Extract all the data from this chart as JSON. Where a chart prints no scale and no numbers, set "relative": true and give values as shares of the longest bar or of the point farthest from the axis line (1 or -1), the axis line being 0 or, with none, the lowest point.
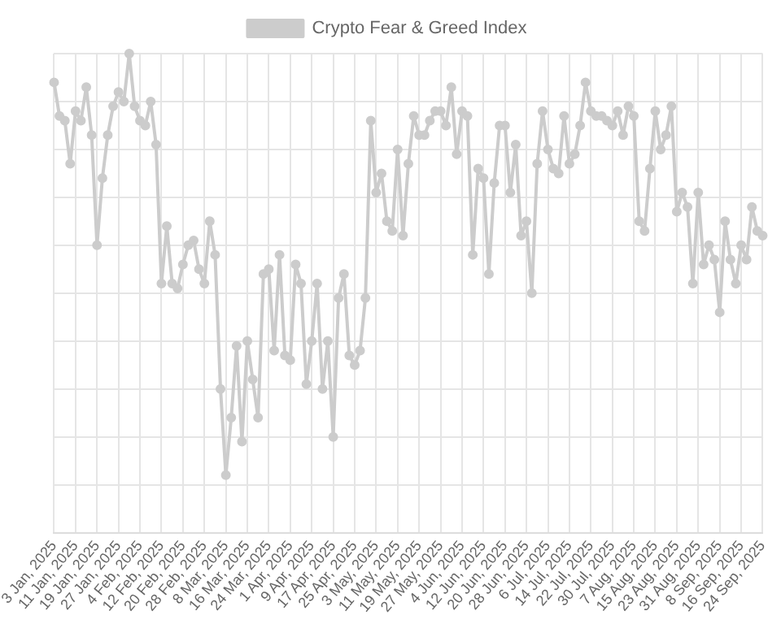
{
  "chart_data": {
    "type": "line",
    "relative": true,
    "legend": "top",
    "grid": true,
    "marker": "circle",
    "line_style": "solid",
    "categories": [
      "3 Jan, 2025",
      null,
      null,
      null,
      "11 Jan, 2025",
      null,
      null,
      null,
      "19 Jan, 2025",
      null,
      null,
      null,
      "27 Jan, 2025",
      null,
      null,
      null,
      "4 Feb, 2025",
      null,
      null,
      null,
      "12 Feb, 2025",
      null,
      null,
      null,
      "20 Feb, 2025",
      null,
      null,
      null,
      "28 Feb, 2025",
      null,
      null,
      null,
      "8 Mar, 2025",
      null,
      null,
      null,
      "16 Mar, 2025",
      null,
      null,
      null,
      "24 Mar, 2025",
      null,
      null,
      null,
      "1 Apr, 2025",
      null,
      null,
      null,
      "9 Apr, 2025",
      null,
      null,
      null,
      "17 Apr, 2025",
      null,
      null,
      null,
      "25 Apr, 2025",
      null,
      null,
      null,
      "3 May, 2025",
      null,
      null,
      null,
      "11 May, 2025",
      null,
      null,
      null,
      "19 May, 2025",
      null,
      null,
      null,
      "27 May, 2025",
      null,
      null,
      null,
      "4 Jun, 2025",
      null,
      null,
      null,
      "12 Jun, 2025",
      null,
      null,
      null,
      "20 Jun, 2025",
      null,
      null,
      null,
      "28 Jun, 2025",
      null,
      null,
      null,
      "6 Jul, 2025",
      null,
      null,
      null,
      "14 Jul, 2025",
      null,
      null,
      null,
      "22 Jul, 2025",
      null,
      null,
      null,
      "30 Jul, 2025",
      null,
      null,
      null,
      "7 Aug, 2025",
      null,
      null,
      null,
      "15 Aug, 2025",
      null,
      null,
      null,
      "23 Aug, 2025",
      null,
      null,
      null,
      "31 Aug, 2025",
      null,
      null,
      null,
      "8 Sep, 2025",
      null,
      null,
      null,
      "16 Sep, 2025",
      null,
      null,
      null,
      "24 Sep, 2025"
    ],
    "series": [
      {
        "name": "Crypto Fear & Greed Index",
        "color": "#cccccc",
        "values": [
          0.94,
          0.87,
          0.86,
          0.77,
          0.88,
          0.86,
          0.93,
          0.83,
          0.6,
          0.74,
          0.83,
          0.89,
          0.92,
          0.9,
          1,
          0.89,
          0.86,
          0.85,
          0.9,
          0.81,
          0.52,
          0.64,
          0.52,
          0.51,
          0.56,
          0.6,
          0.61,
          0.55,
          0.52,
          0.65,
          0.58,
          0.3,
          0.12,
          0.24,
          0.39,
          0.19,
          0.4,
          0.32,
          0.24,
          0.54,
          0.55,
          0.38,
          0.58,
          0.37,
          0.36,
          0.56,
          0.52,
          0.31,
          0.4,
          0.52,
          0.3,
          0.4,
          0.2,
          0.49,
          0.54,
          0.37,
          0.35,
          0.38,
          0.49,
          0.86,
          0.71,
          0.75,
          0.65,
          0.63,
          0.8,
          0.62,
          0.77,
          0.87,
          0.83,
          0.83,
          0.86,
          0.88,
          0.88,
          0.85,
          0.93,
          0.79,
          0.88,
          0.87,
          0.58,
          0.76,
          0.74,
          0.54,
          0.73,
          0.85,
          0.85,
          0.71,
          0.81,
          0.62,
          0.65,
          0.5,
          0.77,
          0.88,
          0.8,
          0.76,
          0.75,
          0.87,
          0.77,
          0.79,
          0.85,
          0.94,
          0.88,
          0.87,
          0.87,
          0.86,
          0.85,
          0.88,
          0.83,
          0.89,
          0.87,
          0.65,
          0.63,
          0.76,
          0.88,
          0.8,
          0.83,
          0.89,
          0.67,
          0.71,
          0.68,
          0.52,
          0.71,
          0.56,
          0.6,
          0.57,
          0.46,
          0.65,
          0.57,
          0.52,
          0.6,
          0.57,
          0.68,
          0.63,
          0.62
        ]
      }
    ]
  }
}
